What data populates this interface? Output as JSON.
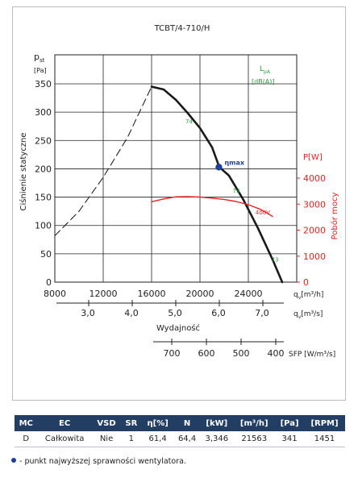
{
  "title": "TCBT/4-710/H",
  "left_axis": {
    "symbol": "p",
    "sub": "st",
    "unit": "[Pa]",
    "label": "Ciśnienie statyczne"
  },
  "right_axis": {
    "unit": "P[W]",
    "label": "Pobór mocy"
  },
  "lpa_label": {
    "symbol": "L",
    "sub": "pA",
    "unit": "[dB(A)]"
  },
  "x_axis_flow_m3h": {
    "symbol": "q",
    "sub": "v",
    "unit": "[m³/h]"
  },
  "x_axis_flow_m3s": {
    "symbol": "q",
    "sub": "v",
    "unit": "[m³/s]"
  },
  "x_label": "Wydajność",
  "sfp_label": "SFP [W/m³/s]",
  "eta_label": "ηmax",
  "chart_data": {
    "type": "line",
    "title": "TCBT/4-710/H",
    "xlabel": "Wydajność",
    "ylabel": "Ciśnienie statyczne",
    "x_units": "m3/h",
    "xlim": [
      8000,
      28000
    ],
    "ylim": [
      0,
      350
    ],
    "y2lim": [
      0,
      5000
    ],
    "x_ticks": [
      "8000",
      "12000",
      "16000",
      "20000",
      "24000"
    ],
    "y_ticks": [
      "0",
      "50",
      "100",
      "150",
      "200",
      "250",
      "300",
      "350"
    ],
    "y2_ticks": [
      "0",
      "1000",
      "2000",
      "3000",
      "4000"
    ],
    "x2_ticks": [
      "3,0",
      "4,0",
      "5,0",
      "6,0",
      "7,0"
    ],
    "sfp_ticks": [
      "700",
      "600",
      "500",
      "400"
    ],
    "series": [
      {
        "role": "pressure_dashed",
        "axis": "left",
        "color": "#222222",
        "dash": true,
        "x": [
          8000,
          10000,
          12000,
          14000,
          16000
        ],
        "y": [
          82,
          125,
          185,
          255,
          345
        ]
      },
      {
        "role": "pressure",
        "axis": "left",
        "color": "#1a1a1a",
        "dash": false,
        "x": [
          16000,
          17000,
          18000,
          19000,
          20000,
          21000,
          21600,
          22400,
          23600,
          24800,
          26000,
          26800
        ],
        "y": [
          345,
          340,
          322,
          298,
          272,
          238,
          203,
          188,
          145,
          95,
          40,
          0
        ]
      },
      {
        "role": "power",
        "axis": "right",
        "color": "#e52320",
        "dash": false,
        "x": [
          16000,
          17000,
          18000,
          19000,
          20000,
          21000,
          22000,
          23000,
          24000,
          25000,
          26000
        ],
        "y": [
          3090,
          3200,
          3280,
          3290,
          3270,
          3230,
          3180,
          3100,
          2980,
          2800,
          2530
        ]
      }
    ],
    "annotations": [
      {
        "text": "74",
        "x": 19100,
        "y": 280,
        "color": "#2e9a3e"
      },
      {
        "text": "73",
        "x": 23000,
        "y": 158,
        "color": "#2e9a3e"
      },
      {
        "text": "73",
        "x": 26200,
        "y": 36,
        "color": "#2e9a3e"
      },
      {
        "text": "400V",
        "x": 25200,
        "y2": 2600,
        "color": "#e52320"
      }
    ],
    "eta_point": {
      "x": 21563,
      "y": 203
    }
  },
  "table": {
    "headers": [
      "MC",
      "EC",
      "VSD",
      "SR",
      "η[%]",
      "N",
      "[kW]",
      "[m³/h]",
      "[Pa]",
      "[RPM]"
    ],
    "row": [
      "D",
      "Całkowita",
      "Nie",
      "1",
      "61,4",
      "64,4",
      "3,346",
      "21563",
      "341",
      "1451"
    ]
  },
  "footnote": "- punkt najwyższej sprawności wentylatora."
}
